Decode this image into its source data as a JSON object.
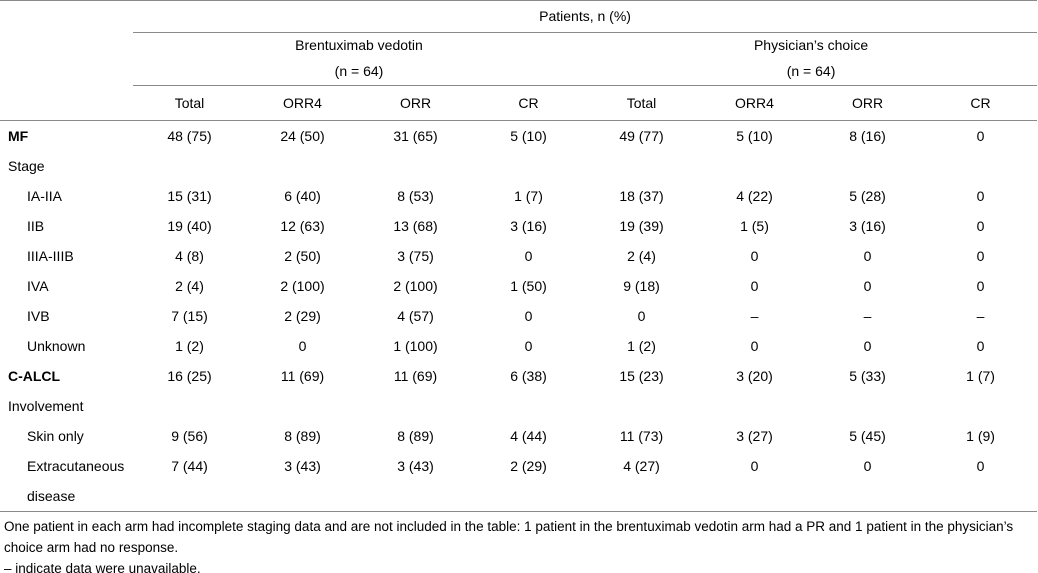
{
  "table": {
    "spanner": "Patients, n (%)",
    "groups": [
      {
        "name": "Brentuximab vedotin",
        "n": "(n = 64)"
      },
      {
        "name": "Physician’s choice",
        "n": "(n = 64)"
      }
    ],
    "columns": [
      "Total",
      "ORR4",
      "ORR",
      "CR",
      "Total",
      "ORR4",
      "ORR",
      "CR"
    ],
    "rows": [
      {
        "label": "MF",
        "bold": true,
        "indent": false,
        "values": [
          "48 (75)",
          "24 (50)",
          "31 (65)",
          "5 (10)",
          "49 (77)",
          "5 (10)",
          "8 (16)",
          "0"
        ]
      },
      {
        "label": "Stage",
        "bold": false,
        "indent": false,
        "values": [
          "",
          "",
          "",
          "",
          "",
          "",
          "",
          ""
        ]
      },
      {
        "label": "IA-IIA",
        "bold": false,
        "indent": true,
        "values": [
          "15 (31)",
          "6 (40)",
          "8 (53)",
          "1 (7)",
          "18 (37)",
          "4 (22)",
          "5 (28)",
          "0"
        ]
      },
      {
        "label": "IIB",
        "bold": false,
        "indent": true,
        "values": [
          "19 (40)",
          "12 (63)",
          "13 (68)",
          "3 (16)",
          "19 (39)",
          "1 (5)",
          "3 (16)",
          "0"
        ]
      },
      {
        "label": "IIIA-IIIB",
        "bold": false,
        "indent": true,
        "values": [
          "4 (8)",
          "2 (50)",
          "3 (75)",
          "0",
          "2 (4)",
          "0",
          "0",
          "0"
        ]
      },
      {
        "label": "IVA",
        "bold": false,
        "indent": true,
        "values": [
          "2 (4)",
          "2 (100)",
          "2 (100)",
          "1 (50)",
          "9 (18)",
          "0",
          "0",
          "0"
        ]
      },
      {
        "label": "IVB",
        "bold": false,
        "indent": true,
        "values": [
          "7 (15)",
          "2 (29)",
          "4 (57)",
          "0",
          "0",
          "–",
          "–",
          "–"
        ]
      },
      {
        "label": "Unknown",
        "bold": false,
        "indent": true,
        "values": [
          "1 (2)",
          "0",
          "1 (100)",
          "0",
          "1 (2)",
          "0",
          "0",
          "0"
        ]
      },
      {
        "label": "C-ALCL",
        "bold": true,
        "indent": false,
        "values": [
          "16 (25)",
          "11 (69)",
          "11 (69)",
          "6 (38)",
          "15 (23)",
          "3 (20)",
          "5 (33)",
          "1 (7)"
        ]
      },
      {
        "label": "Involvement",
        "bold": false,
        "indent": false,
        "values": [
          "",
          "",
          "",
          "",
          "",
          "",
          "",
          ""
        ]
      },
      {
        "label": "Skin only",
        "bold": false,
        "indent": true,
        "values": [
          "9 (56)",
          "8 (89)",
          "8 (89)",
          "4 (44)",
          "11 (73)",
          "3 (27)",
          "5 (45)",
          "1 (9)"
        ]
      },
      {
        "label": "Extracutaneous disease",
        "bold": false,
        "indent": true,
        "values": [
          "7 (44)",
          "3 (43)",
          "3 (43)",
          "2 (29)",
          "4 (27)",
          "0",
          "0",
          "0"
        ]
      }
    ]
  },
  "footnotes": [
    "One patient in each arm had incomplete staging data and are not included in the table: 1 patient in the brentuximab vedotin arm had a PR and 1 patient in the physician’s choice arm had no response.",
    "– indicate data were unavailable."
  ]
}
